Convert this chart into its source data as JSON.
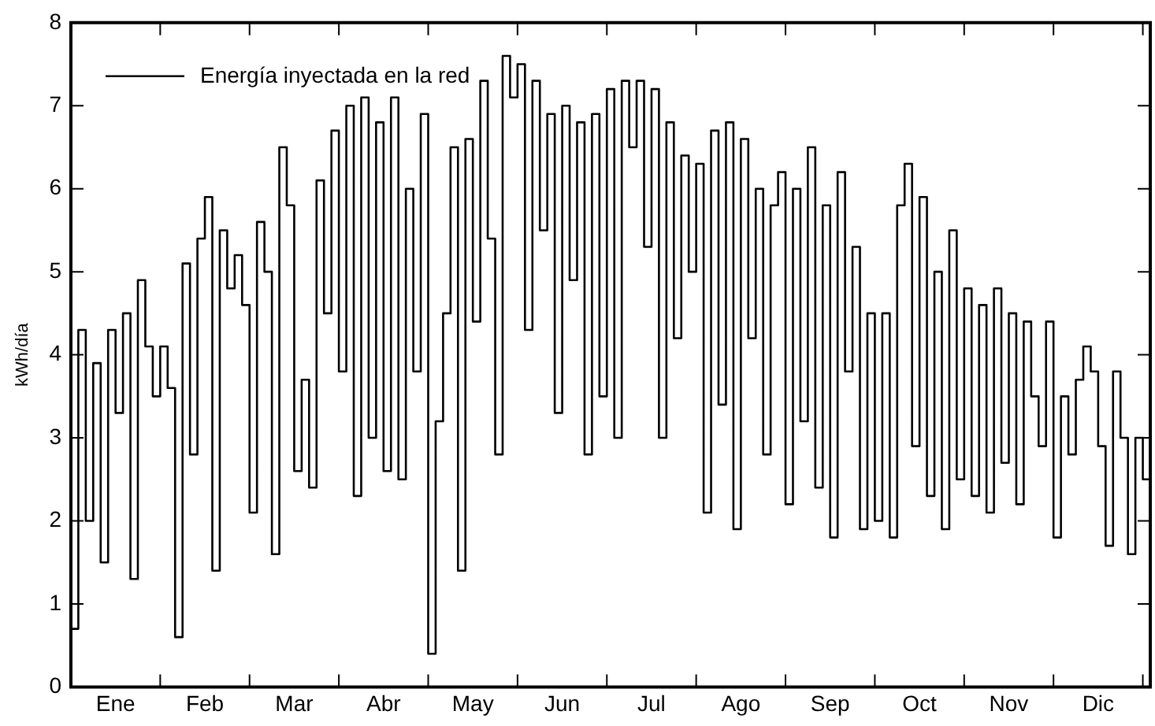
{
  "chart_data": {
    "type": "step",
    "ylabel": "kWh/día",
    "categories": [
      null,
      null,
      null,
      null,
      null,
      null,
      "Ene",
      null,
      null,
      null,
      null,
      null,
      null,
      null,
      null,
      null,
      null,
      null,
      "Feb",
      null,
      null,
      null,
      null,
      null,
      null,
      null,
      null,
      null,
      null,
      null,
      "Mar",
      null,
      null,
      null,
      null,
      null,
      null,
      null,
      null,
      null,
      null,
      null,
      "Abr",
      null,
      null,
      null,
      null,
      null,
      null,
      null,
      null,
      null,
      null,
      null,
      "May",
      null,
      null,
      null,
      null,
      null,
      null,
      null,
      null,
      null,
      null,
      null,
      "Jun",
      null,
      null,
      null,
      null,
      null,
      null,
      null,
      null,
      null,
      null,
      null,
      "Jul",
      null,
      null,
      null,
      null,
      null,
      null,
      null,
      null,
      null,
      null,
      null,
      "Ago",
      null,
      null,
      null,
      null,
      null,
      null,
      null,
      null,
      null,
      null,
      null,
      "Sep",
      null,
      null,
      null,
      null,
      null,
      null,
      null,
      null,
      null,
      null,
      null,
      "Oct",
      null,
      null,
      null,
      null,
      null,
      null,
      null,
      null,
      null,
      null,
      null,
      "Nov",
      null,
      null,
      null,
      null,
      null,
      null,
      null,
      null,
      null,
      null,
      null,
      "Dic",
      null,
      null,
      null,
      null,
      null,
      null,
      null
    ],
    "series": [
      {
        "name": "Energía inyectada en la red",
        "color": "#000000",
        "values": [
          0.7,
          4.3,
          2.0,
          3.9,
          1.5,
          4.3,
          3.3,
          4.5,
          1.3,
          4.9,
          4.1,
          3.5,
          4.1,
          3.6,
          0.6,
          5.1,
          2.8,
          5.4,
          5.9,
          1.4,
          5.5,
          4.8,
          5.2,
          4.6,
          2.1,
          5.6,
          5.0,
          1.6,
          6.5,
          5.8,
          2.6,
          3.7,
          2.4,
          6.1,
          4.5,
          6.7,
          3.8,
          7.0,
          2.3,
          7.1,
          3.0,
          6.8,
          2.6,
          7.1,
          2.5,
          6.0,
          3.8,
          6.9,
          0.4,
          3.2,
          4.5,
          6.5,
          1.4,
          6.6,
          4.4,
          7.3,
          5.4,
          2.8,
          7.6,
          7.1,
          7.5,
          4.3,
          7.3,
          5.5,
          6.9,
          3.3,
          7.0,
          4.9,
          6.8,
          2.8,
          6.9,
          3.5,
          7.2,
          3.0,
          7.3,
          6.5,
          7.3,
          5.3,
          7.2,
          3.0,
          6.8,
          4.2,
          6.4,
          5.0,
          6.3,
          2.1,
          6.7,
          3.4,
          6.8,
          1.9,
          6.6,
          4.2,
          6.0,
          2.8,
          5.8,
          6.2,
          2.2,
          6.0,
          3.2,
          6.5,
          2.4,
          5.8,
          1.8,
          6.2,
          3.8,
          5.3,
          1.9,
          4.5,
          2.0,
          4.5,
          1.8,
          5.8,
          6.3,
          2.9,
          5.9,
          2.3,
          5.0,
          1.9,
          5.5,
          2.5,
          4.8,
          2.3,
          4.6,
          2.1,
          4.8,
          2.7,
          4.5,
          2.2,
          4.4,
          3.5,
          2.9,
          4.4,
          1.8,
          3.5,
          2.8,
          3.7,
          4.1,
          3.8,
          2.9,
          1.7,
          3.8,
          3.0,
          1.6,
          3.0,
          2.5,
          3.1
        ]
      }
    ],
    "ylim": [
      0,
      8
    ],
    "yticks": [
      0,
      1,
      2,
      3,
      4,
      5,
      6,
      7,
      8
    ],
    "grid": false,
    "legend": "top left"
  }
}
